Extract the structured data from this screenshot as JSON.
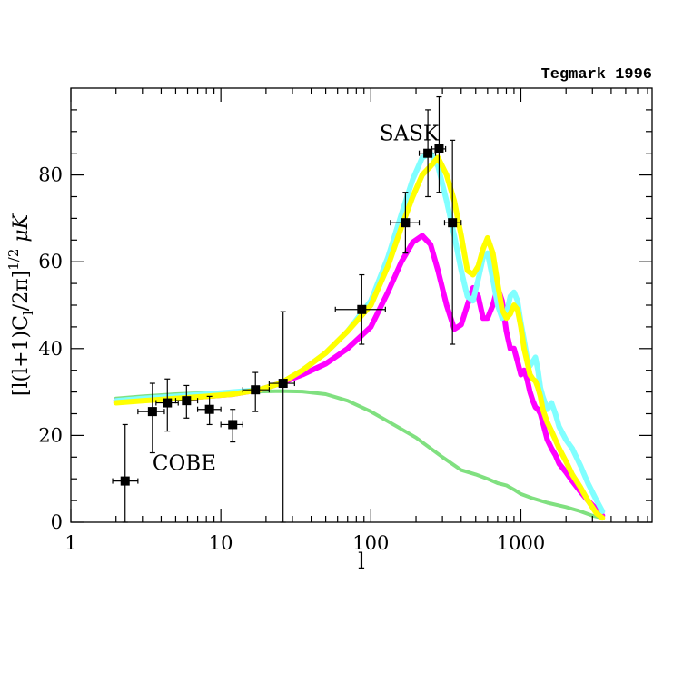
{
  "chart_data": {
    "type": "line",
    "credit": "Tegmark 1996",
    "xlabel": "l",
    "ylabel_parts": {
      "open": "[l(l+1)C",
      "sub": "l",
      "mid": "/2π]",
      "sup": "1/2",
      "unit": " μK"
    },
    "x_scale": "log",
    "xlim": [
      1,
      7500
    ],
    "ylim": [
      0,
      100
    ],
    "x_ticks": [
      1,
      10,
      100,
      1000
    ],
    "x_tick_labels": [
      "1",
      "10",
      "100",
      "1000"
    ],
    "y_ticks": [
      0,
      20,
      40,
      60,
      80
    ],
    "y_tick_labels": [
      "0",
      "20",
      "40",
      "60",
      "80"
    ],
    "annotations": [
      {
        "id": "sask",
        "text": "SASK",
        "x": 180,
        "y": 88
      },
      {
        "id": "cobe",
        "text": "COBE",
        "x": 3.5,
        "y": 12
      }
    ],
    "series": [
      {
        "name": "green",
        "color": "#80e080",
        "width": 4,
        "x": [
          2,
          3,
          5,
          8,
          12,
          18,
          25,
          35,
          50,
          70,
          100,
          150,
          200,
          300,
          400,
          500,
          600,
          700,
          800,
          900,
          1000,
          1200,
          1500,
          2000,
          2500,
          3000,
          3500
        ],
        "y": [
          28.5,
          29,
          29.5,
          29.8,
          30,
          30.1,
          30.2,
          30.1,
          29.5,
          28,
          25.5,
          22,
          19.5,
          15,
          12,
          11,
          10,
          9,
          8.5,
          7.5,
          6.5,
          5.5,
          4.5,
          3.5,
          2.5,
          1.5,
          1
        ]
      },
      {
        "name": "magenta",
        "color": "#ff00ff",
        "width": 6,
        "x": [
          2,
          3,
          5,
          8,
          12,
          18,
          25,
          35,
          50,
          70,
          100,
          130,
          160,
          190,
          220,
          250,
          280,
          320,
          360,
          400,
          440,
          480,
          520,
          560,
          600,
          650,
          700,
          750,
          800,
          850,
          900,
          950,
          1000,
          1050,
          1100,
          1150,
          1200,
          1250,
          1300,
          1350,
          1400,
          1500,
          1600,
          1700,
          1800,
          2000,
          2200,
          2500,
          2800,
          3200,
          3500
        ],
        "y": [
          28,
          28.2,
          28.5,
          29,
          29.5,
          30.5,
          32,
          34,
          36.5,
          40,
          45,
          53,
          60,
          64.5,
          66,
          64,
          58,
          50,
          44.5,
          45.5,
          50,
          54,
          52,
          47,
          47,
          50,
          54,
          51,
          44,
          40,
          40,
          37,
          34,
          35,
          33,
          30,
          28,
          26.5,
          26,
          25,
          23,
          19,
          17,
          15.5,
          13.5,
          11.5,
          9.5,
          7,
          5,
          3,
          1.5
        ]
      },
      {
        "name": "cyan",
        "color": "#80ffff",
        "width": 6,
        "x": [
          2,
          3,
          5,
          8,
          12,
          18,
          25,
          35,
          50,
          70,
          100,
          130,
          160,
          190,
          220,
          250,
          280,
          320,
          360,
          400,
          440,
          480,
          520,
          560,
          600,
          650,
          700,
          750,
          800,
          850,
          900,
          950,
          1000,
          1050,
          1100,
          1150,
          1200,
          1250,
          1300,
          1350,
          1400,
          1500,
          1600,
          1700,
          1800,
          2000,
          2200,
          2500,
          2800,
          3200,
          3500
        ],
        "y": [
          28,
          28.5,
          29,
          29.5,
          30,
          30.5,
          32,
          35,
          39,
          44,
          51,
          61,
          71,
          79,
          84,
          85,
          82,
          74,
          66,
          58,
          52,
          51,
          56,
          61,
          62,
          56,
          50,
          47,
          48,
          52,
          53,
          51,
          46,
          42,
          38,
          36,
          37,
          38,
          35,
          31,
          29,
          26,
          27.5,
          25,
          22,
          19,
          17,
          13,
          9,
          5,
          2.5
        ]
      },
      {
        "name": "yellow",
        "color": "#ffff00",
        "width": 6,
        "x": [
          2,
          3,
          5,
          8,
          12,
          18,
          25,
          35,
          50,
          70,
          100,
          130,
          160,
          190,
          220,
          250,
          280,
          320,
          360,
          400,
          440,
          480,
          520,
          560,
          600,
          650,
          700,
          750,
          800,
          850,
          900,
          950,
          1000,
          1050,
          1100,
          1150,
          1200,
          1250,
          1300,
          1350,
          1400,
          1500,
          1600,
          1700,
          1800,
          2000,
          2200,
          2500,
          2800,
          3200,
          3500
        ],
        "y": [
          27.5,
          28,
          28.5,
          29,
          29.5,
          30.5,
          32,
          35,
          39,
          44,
          50,
          59,
          68,
          75,
          80,
          82,
          84,
          80,
          74,
          66,
          58,
          57,
          59,
          63,
          65.5,
          62,
          55,
          49,
          47,
          48,
          50,
          49,
          45,
          40,
          37,
          34,
          33,
          32.5,
          31,
          29,
          26,
          23,
          21,
          19,
          17,
          14,
          11,
          8,
          5,
          2,
          1
        ]
      }
    ],
    "data_points": [
      {
        "x": 2.3,
        "y": 9.5,
        "xerr": [
          1.9,
          2.8
        ],
        "yerr": [
          0,
          22.5
        ]
      },
      {
        "x": 3.5,
        "y": 25.5,
        "xerr": [
          2.8,
          4.2
        ],
        "yerr": [
          16,
          32
        ]
      },
      {
        "x": 4.4,
        "y": 27.5,
        "xerr": [
          3.7,
          5.2
        ],
        "yerr": [
          21,
          33
        ]
      },
      {
        "x": 5.9,
        "y": 28,
        "xerr": [
          5,
          7
        ],
        "yerr": [
          24,
          31.5
        ]
      },
      {
        "x": 8.4,
        "y": 26,
        "xerr": [
          7,
          10
        ],
        "yerr": [
          22.5,
          29
        ]
      },
      {
        "x": 12,
        "y": 22.5,
        "xerr": [
          10,
          14
        ],
        "yerr": [
          18.5,
          26
        ]
      },
      {
        "x": 17,
        "y": 30.5,
        "xerr": [
          14,
          21
        ],
        "yerr": [
          25.5,
          34.5
        ]
      },
      {
        "x": 26,
        "y": 32,
        "xerr": [
          21,
          31
        ],
        "yerr": [
          0,
          48.5
        ]
      },
      {
        "x": 87,
        "y": 49,
        "xerr": [
          58,
          125
        ],
        "yerr": [
          41,
          57
        ]
      },
      {
        "x": 170,
        "y": 69,
        "xerr": [
          135,
          210
        ],
        "yerr": [
          62,
          76
        ]
      },
      {
        "x": 240,
        "y": 85,
        "xerr": [
          210,
          270
        ],
        "yerr": [
          75,
          95
        ]
      },
      {
        "x": 285,
        "y": 86,
        "xerr": [
          255,
          315
        ],
        "yerr": [
          76,
          98
        ]
      },
      {
        "x": 350,
        "y": 69,
        "xerr": [
          310,
          400
        ],
        "yerr": [
          41,
          88
        ]
      }
    ]
  }
}
